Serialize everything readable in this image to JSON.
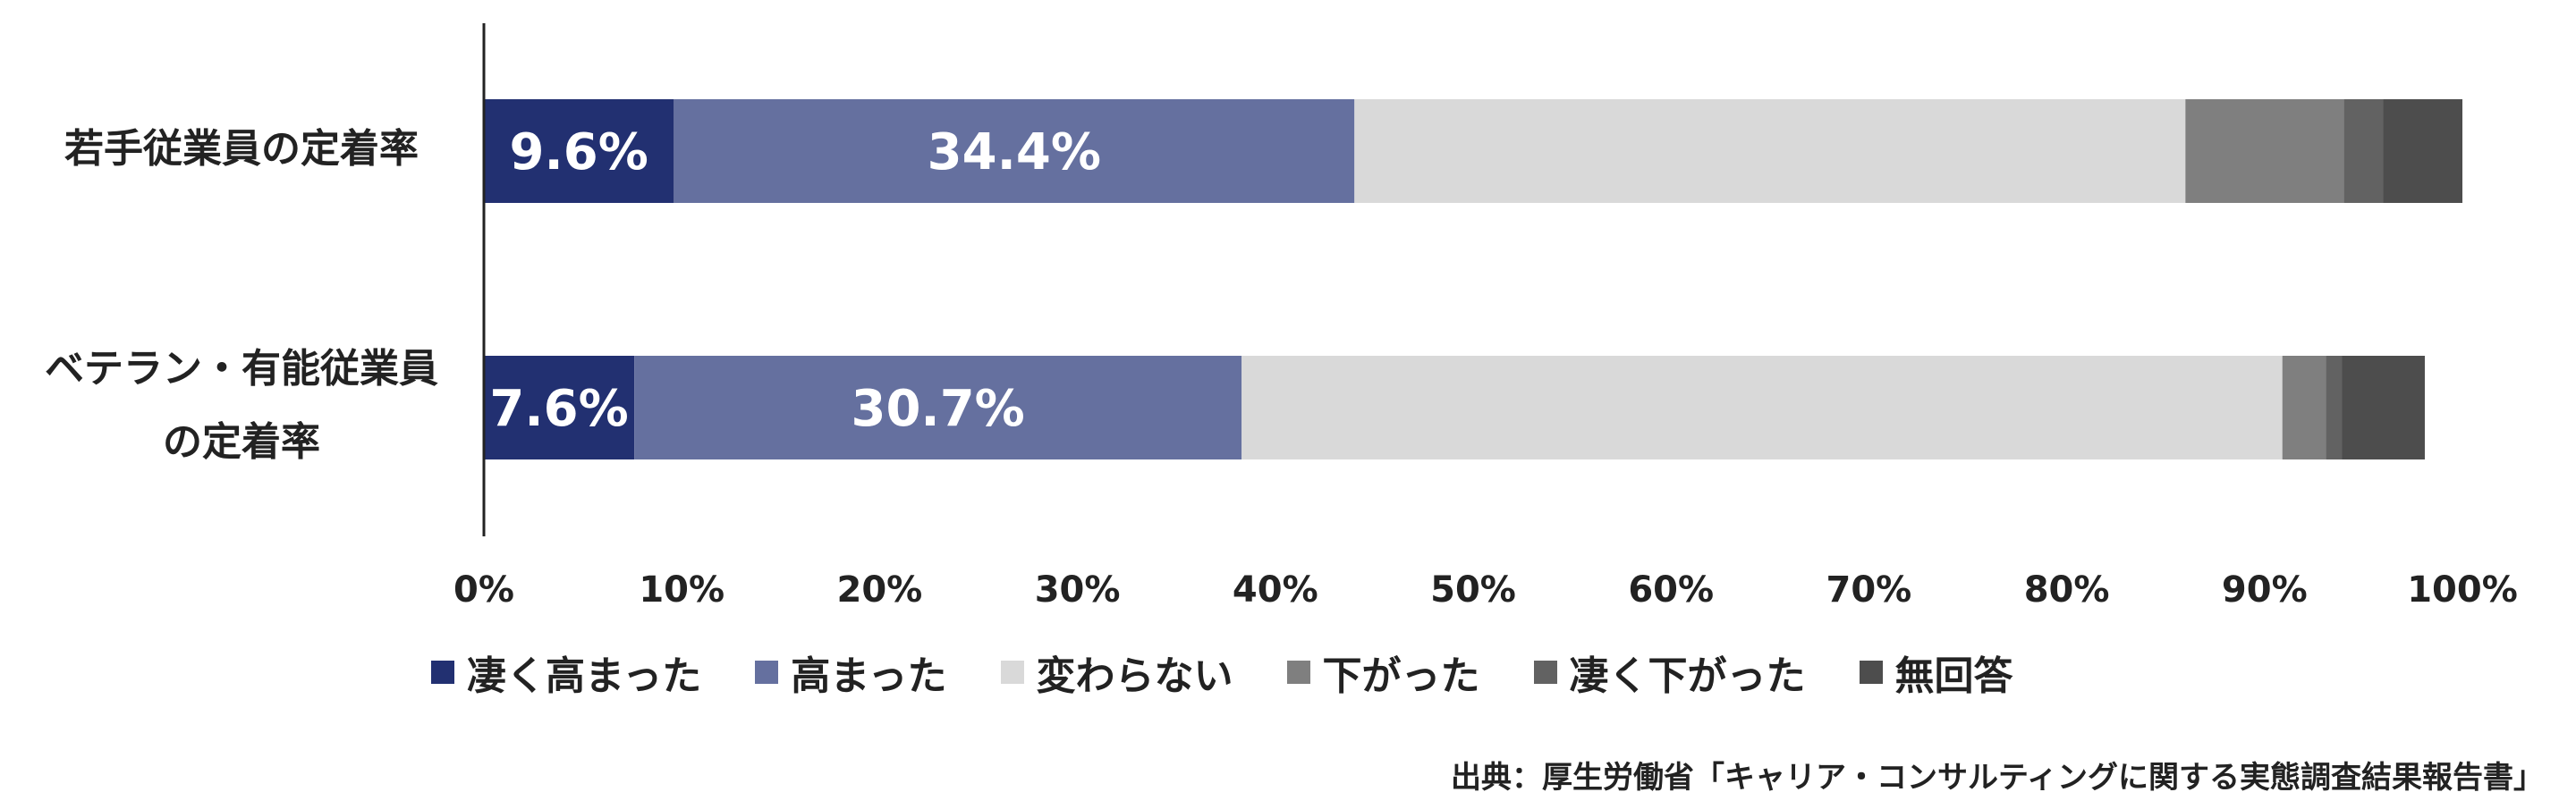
{
  "chart_data": {
    "type": "bar",
    "orientation": "horizontal",
    "stacked": true,
    "percent_scale": true,
    "categories": [
      [
        "若手従業員の定着率"
      ],
      [
        "ベテラン・有能従業員",
        "の定着率"
      ]
    ],
    "series": [
      {
        "name": "凄く高まった",
        "color": "#223071",
        "values": [
          9.6,
          7.6
        ],
        "labels": [
          "9.6%",
          "7.6%"
        ]
      },
      {
        "name": "高まった",
        "color": "#65709F",
        "values": [
          34.4,
          30.7
        ],
        "labels": [
          "34.4%",
          "30.7%"
        ]
      },
      {
        "name": "変わらない",
        "color": "#D9D9D9",
        "values": [
          42.0,
          52.6
        ],
        "labels": [
          "",
          ""
        ]
      },
      {
        "name": "下がった",
        "color": "#7F7F7F",
        "values": [
          8.0,
          2.2
        ],
        "labels": [
          "",
          ""
        ]
      },
      {
        "name": "凄く下がった",
        "color": "#626262",
        "values": [
          2.0,
          0.8
        ],
        "labels": [
          "",
          ""
        ]
      },
      {
        "name": "無回答",
        "color": "#4D4D4D",
        "values": [
          4.0,
          4.2
        ],
        "labels": [
          "",
          ""
        ]
      }
    ],
    "xlim": [
      0,
      100
    ],
    "xticks": [
      "0%",
      "10%",
      "20%",
      "30%",
      "40%",
      "50%",
      "60%",
      "70%",
      "80%",
      "90%",
      "100%"
    ],
    "legend_position": "bottom",
    "grid": false
  },
  "source_note": "出典：厚生労働省「キャリア・コンサルティングに関する実態調査結果報告書」"
}
